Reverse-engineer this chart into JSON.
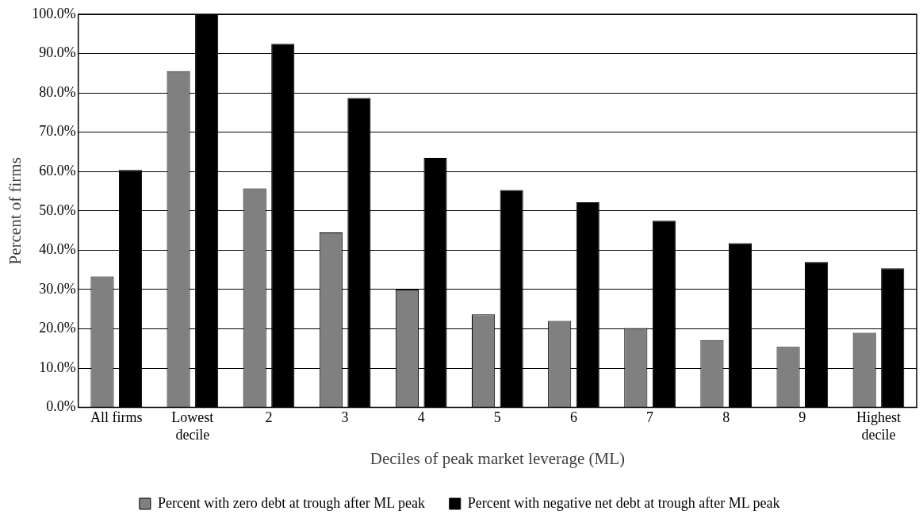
{
  "chart_data": {
    "type": "bar",
    "xlabel": "Deciles of peak market leverage (ML)",
    "ylabel": "Percent of firms",
    "categories": [
      "All firms",
      "Lowest decile",
      "2",
      "3",
      "4",
      "5",
      "6",
      "7",
      "8",
      "9",
      "Highest decile"
    ],
    "series": [
      {
        "name": "Percent with zero debt at trough after ML peak",
        "color": "#808080",
        "values": [
          33.3,
          85.5,
          55.7,
          44.5,
          30.0,
          23.7,
          22.0,
          20.2,
          17.1,
          15.4,
          19.0
        ]
      },
      {
        "name": "Percent with negative net debt at trough after ML peak",
        "color": "#000000",
        "values": [
          60.4,
          100,
          92.5,
          78.7,
          63.5,
          55.3,
          52.2,
          47.5,
          41.8,
          37.0,
          35.4
        ]
      }
    ],
    "ylim": [
      0,
      100
    ],
    "yticks": [
      {
        "value": 0,
        "label": "0.0%"
      },
      {
        "value": 10,
        "label": "10.0%"
      },
      {
        "value": 20,
        "label": "20.0%"
      },
      {
        "value": 30,
        "label": "30.0%"
      },
      {
        "value": 40,
        "label": "40.0%"
      },
      {
        "value": 50,
        "label": "50.0%"
      },
      {
        "value": 60,
        "label": "60.0%"
      },
      {
        "value": 70,
        "label": "70.0%"
      },
      {
        "value": 80,
        "label": "80.0%"
      },
      {
        "value": 90,
        "label": "90.0%"
      },
      {
        "value": 100,
        "label": "100.0%"
      }
    ],
    "grid": "y",
    "legend": "bottom"
  }
}
